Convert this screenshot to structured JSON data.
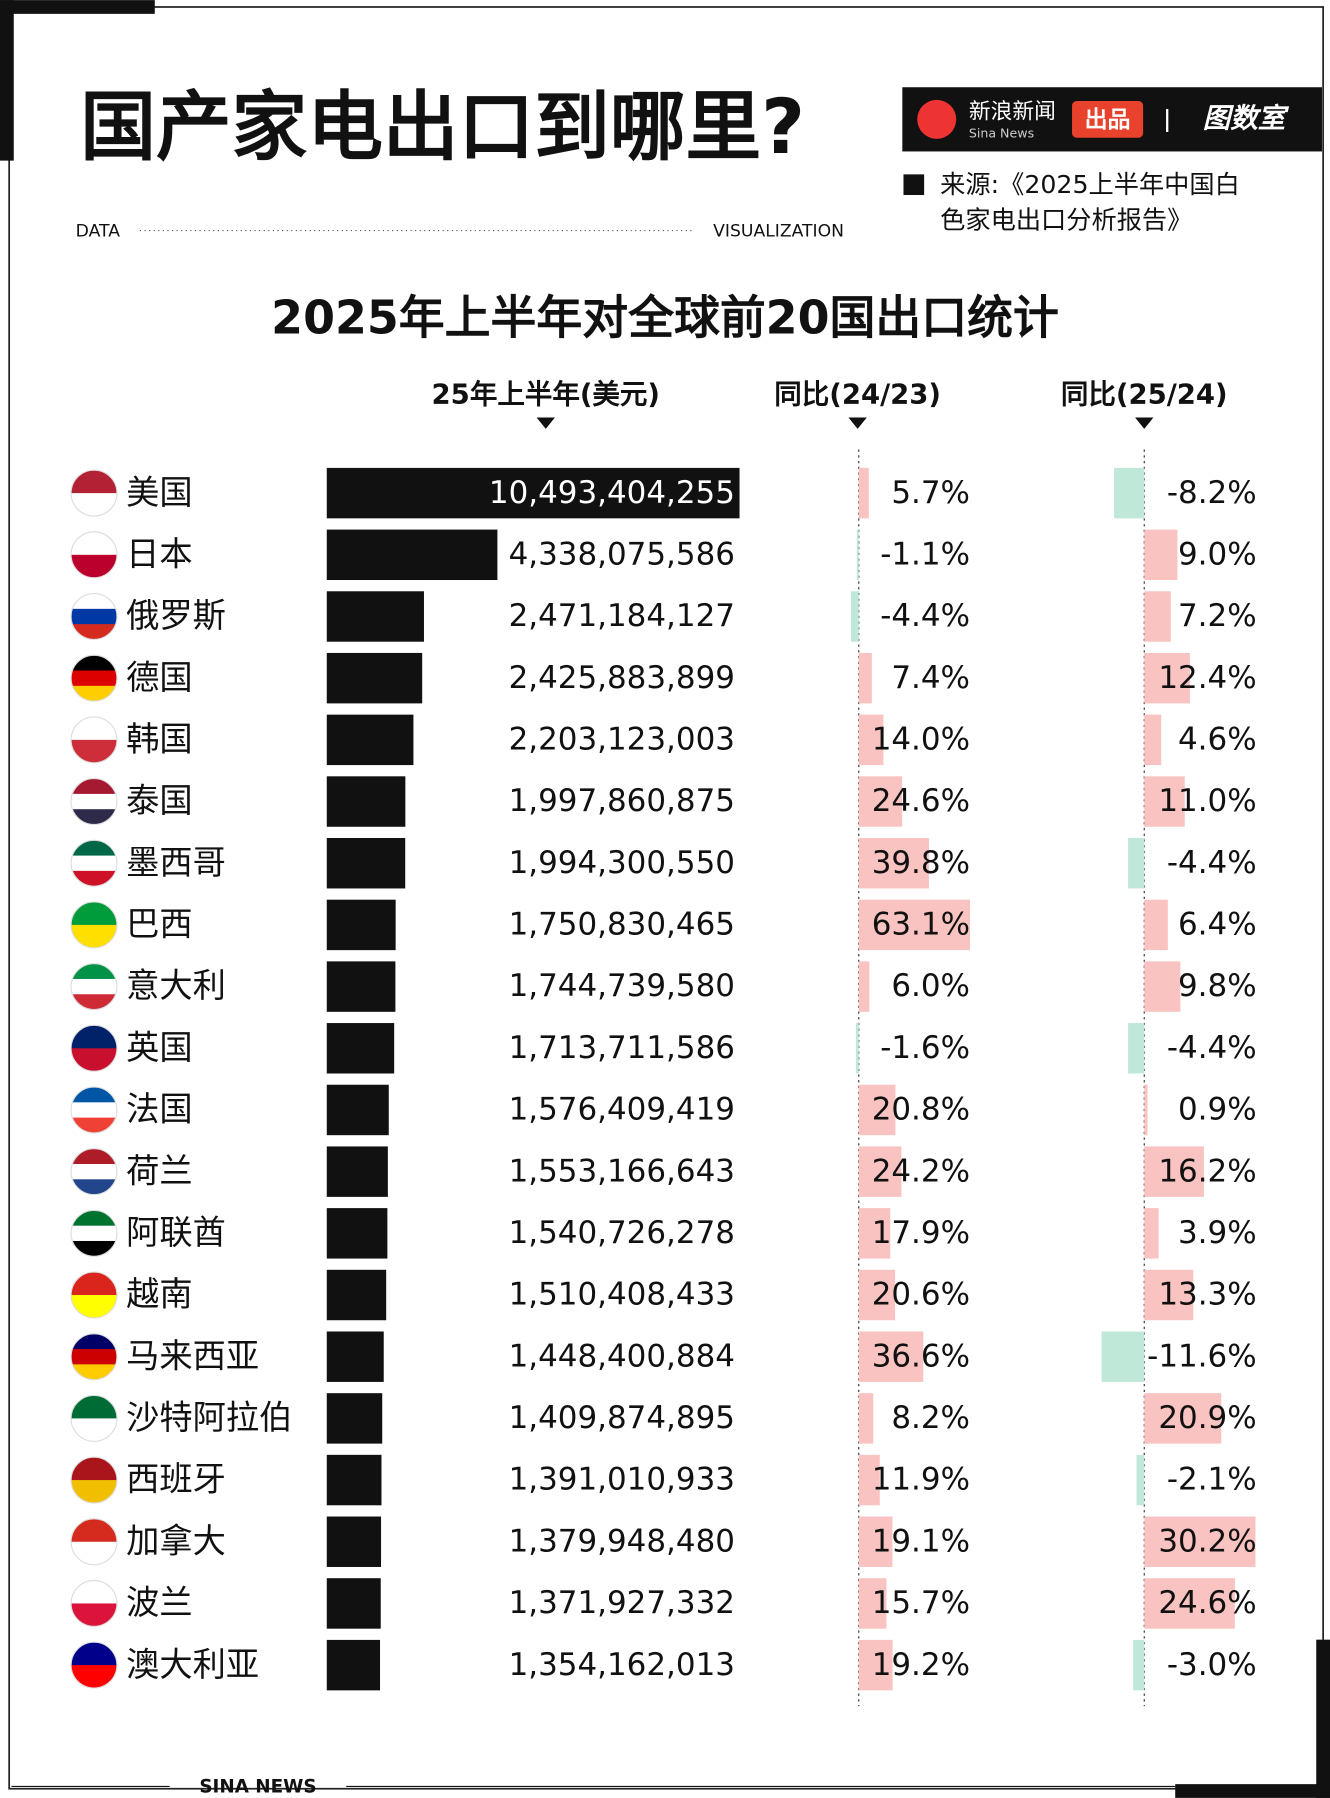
{
  "header": {
    "title": "国产家电出口到哪里?",
    "left_tag": "DATA",
    "right_tag": "VISUALIZATION",
    "brand": "新浪新闻",
    "brand_en": "Sina News",
    "produced": "出品",
    "studio": "图数室",
    "source_lines": [
      "来源:《2025上半年中国白",
      "色家电出口分析报告》"
    ],
    "footer": "SINA NEWS"
  },
  "chart_data": {
    "type": "bar",
    "orientation": "horizontal",
    "title": "2025年上半年对全球前20国出口统计",
    "categories": [
      "美国",
      "日本",
      "俄罗斯",
      "德国",
      "韩国",
      "泰国",
      "墨西哥",
      "巴西",
      "意大利",
      "英国",
      "法国",
      "荷兰",
      "阿联酋",
      "越南",
      "马来西亚",
      "沙特阿拉伯",
      "西班牙",
      "加拿大",
      "波兰",
      "澳大利亚"
    ],
    "series": [
      {
        "name": "25年上半年(美元)",
        "color": "#111111",
        "values": [
          10493404255,
          4338075586,
          2471184127,
          2425883899,
          2203123003,
          1997860875,
          1994300550,
          1750830465,
          1744739580,
          1713711586,
          1576409419,
          1553166643,
          1540726278,
          1510408433,
          1448400884,
          1409874895,
          1391010933,
          1379948480,
          1371927332,
          1354162013
        ],
        "value_labels": [
          "10,493,404,255",
          "4,338,075,586",
          "2,471,184,127",
          "2,425,883,899",
          "2,203,123,003",
          "1,997,860,875",
          "1,994,300,550",
          "1,750,830,465",
          "1,744,739,580",
          "1,713,711,586",
          "1,576,409,419",
          "1,553,166,643",
          "1,540,726,278",
          "1,510,408,433",
          "1,448,400,884",
          "1,409,874,895",
          "1,391,010,933",
          "1,379,948,480",
          "1,371,927,332",
          "1,354,162,013"
        ]
      },
      {
        "name": "同比(24/23)",
        "positive_color": "#f8c3c0",
        "negative_color": "#bfe8d8",
        "values": [
          5.7,
          -1.1,
          -4.4,
          7.4,
          14,
          24.6,
          39.8,
          63.1,
          6,
          -1.6,
          20.8,
          24.2,
          17.9,
          20.6,
          36.6,
          8.2,
          11.9,
          19.1,
          15.7,
          19.2
        ],
        "value_labels": [
          "5.7%",
          "-1.1%",
          "-4.4%",
          "7.4%",
          "14.0%",
          "24.6%",
          "39.8%",
          "63.1%",
          "6.0%",
          "-1.6%",
          "20.8%",
          "24.2%",
          "17.9%",
          "20.6%",
          "36.6%",
          "8.2%",
          "11.9%",
          "19.1%",
          "15.7%",
          "19.2%"
        ]
      },
      {
        "name": "同比(25/24)",
        "positive_color": "#f8c3c0",
        "negative_color": "#bfe8d8",
        "values": [
          -8.2,
          9,
          7.2,
          12.4,
          4.6,
          11,
          -4.4,
          6.4,
          9.8,
          -4.4,
          0.9,
          16.2,
          3.9,
          13.3,
          -11.6,
          20.9,
          -2.1,
          30.2,
          24.6,
          -3
        ],
        "value_labels": [
          "-8.2%",
          "9.0%",
          "7.2%",
          "12.4%",
          "4.6%",
          "11.0%",
          "-4.4%",
          "6.4%",
          "9.8%",
          "-4.4%",
          "0.9%",
          "16.2%",
          "3.9%",
          "13.3%",
          "-11.6%",
          "20.9%",
          "-2.1%",
          "30.2%",
          "24.6%",
          "-3.0%"
        ]
      }
    ]
  }
}
